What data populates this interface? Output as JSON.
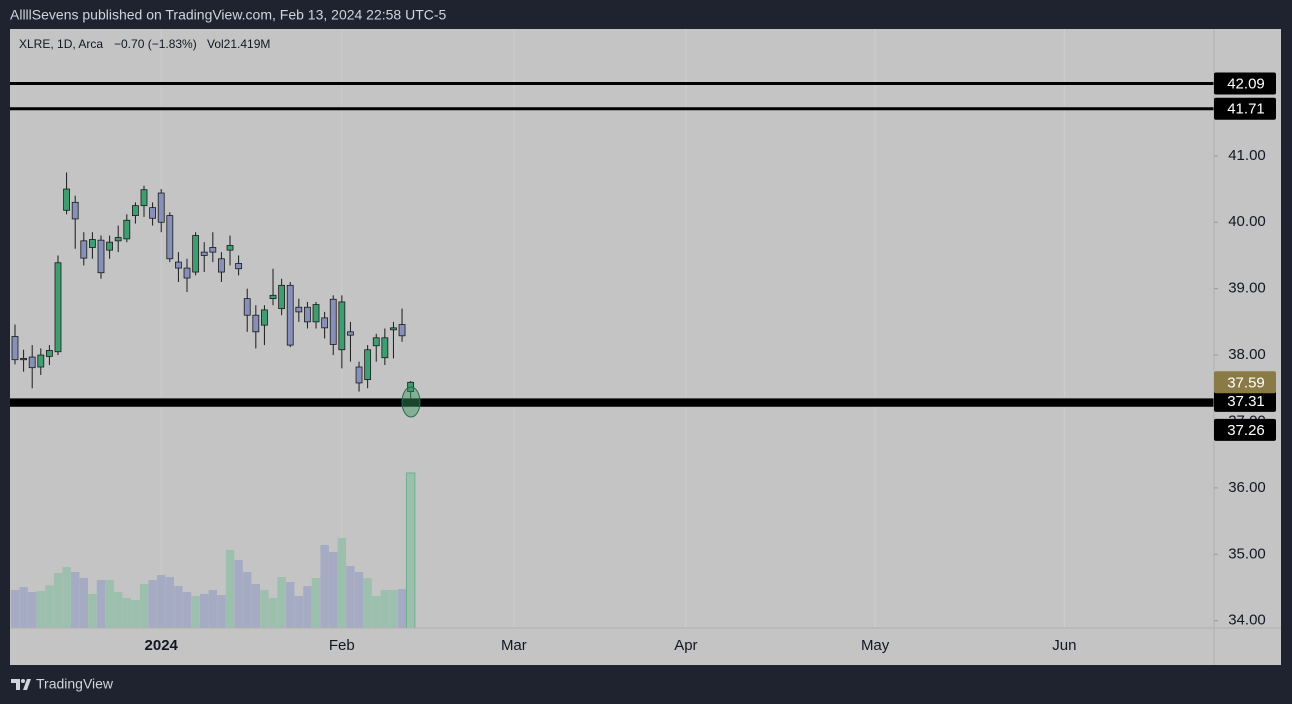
{
  "chart_data": {
    "type": "candlestick",
    "header": "AllllSevens published on TradingView.com, Feb 13, 2024 22:58 UTC-5",
    "symbol": "XLRE, 1D, Arca",
    "change": "−0.70 (−1.83%)",
    "volume_label": "Vol21.419M",
    "brand": "TradingView",
    "up_color": "#3f9d72",
    "down_color": "#8690b8",
    "volume_up_color": "#9dbfae",
    "volume_down_color": "#a6abc4",
    "open": [
      38.28,
      37.95,
      37.97,
      37.82,
      37.98,
      38.05,
      40.18,
      40.3,
      39.72,
      39.62,
      39.73,
      39.58,
      39.72,
      39.75,
      40.1,
      40.25,
      40.22,
      40.44,
      40.1,
      39.4,
      39.31,
      39.25,
      39.55,
      39.62,
      39.45,
      39.58,
      39.38,
      38.85,
      38.6,
      38.45,
      38.85,
      38.7,
      39.05,
      38.72,
      38.72,
      38.5,
      38.56,
      38.84,
      38.08,
      38.35,
      37.82,
      37.63,
      38.14,
      37.96,
      38.38,
      38.46,
      37.45
    ],
    "high": [
      38.46,
      38.08,
      38.15,
      38.1,
      38.15,
      39.5,
      40.75,
      40.4,
      39.85,
      39.85,
      39.8,
      39.8,
      39.95,
      40.12,
      40.3,
      40.55,
      40.3,
      40.5,
      40.15,
      39.55,
      39.45,
      39.85,
      39.7,
      39.85,
      39.55,
      39.8,
      39.5,
      39.0,
      38.75,
      38.75,
      39.3,
      39.15,
      39.1,
      38.85,
      38.8,
      38.8,
      38.65,
      38.9,
      38.9,
      38.5,
      37.9,
      38.15,
      38.32,
      38.4,
      38.5,
      38.7,
      37.61
    ],
    "low": [
      37.86,
      37.75,
      37.5,
      37.7,
      37.85,
      38.0,
      40.12,
      39.6,
      39.35,
      39.45,
      39.15,
      39.45,
      39.55,
      39.7,
      39.98,
      40.08,
      39.95,
      39.85,
      39.4,
      39.1,
      38.95,
      39.2,
      39.25,
      39.4,
      39.1,
      39.35,
      39.2,
      38.35,
      38.1,
      38.15,
      38.75,
      38.6,
      38.12,
      38.5,
      38.4,
      38.4,
      38.25,
      38.0,
      37.8,
      37.9,
      37.45,
      37.5,
      37.9,
      37.85,
      37.95,
      38.2,
      37.35
    ],
    "close": [
      37.93,
      37.93,
      37.81,
      38.0,
      38.07,
      39.39,
      40.5,
      40.05,
      39.46,
      39.74,
      39.24,
      39.7,
      39.77,
      40.03,
      40.25,
      40.49,
      40.06,
      40.0,
      39.45,
      39.31,
      39.16,
      39.8,
      39.5,
      39.55,
      39.25,
      39.65,
      39.3,
      38.6,
      38.35,
      38.68,
      38.9,
      39.05,
      38.15,
      38.65,
      38.5,
      38.76,
      38.41,
      38.16,
      38.8,
      38.3,
      37.58,
      38.08,
      38.26,
      38.26,
      38.41,
      38.29,
      37.59
    ],
    "volume": [
      5.25,
      5.67,
      4.97,
      5.1,
      5.9,
      7.6,
      8.43,
      7.74,
      6.91,
      4.7,
      6.63,
      6.63,
      4.97,
      4.15,
      3.87,
      6.08,
      6.63,
      7.32,
      7.05,
      5.8,
      4.97,
      4.42,
      4.7,
      5.25,
      4.56,
      10.78,
      9.4,
      7.74,
      6.08,
      5.25,
      4.15,
      7.05,
      6.36,
      4.42,
      5.8,
      6.91,
      11.47,
      10.5,
      12.44,
      8.57,
      7.74,
      6.91,
      4.42,
      5.25,
      5.25,
      5.39,
      21.419
    ],
    "ylim": [
      33.89,
      42.91
    ],
    "yticks": [
      {
        "value": 34,
        "label": "34.00"
      },
      {
        "value": 35,
        "label": "35.00"
      },
      {
        "value": 36,
        "label": "36.00"
      },
      {
        "value": 37,
        "label": "37.00"
      },
      {
        "value": 38,
        "label": "38.00"
      },
      {
        "value": 39,
        "label": "39.00"
      },
      {
        "value": 40,
        "label": "40.00"
      },
      {
        "value": 41,
        "label": "41.00"
      }
    ],
    "xlim": [
      -0.58,
      139.4
    ],
    "xticks": [
      {
        "value": 17,
        "label": "2024"
      },
      {
        "value": 38,
        "label": "Feb"
      },
      {
        "value": 58,
        "label": "Mar"
      },
      {
        "value": 78,
        "label": "Apr"
      },
      {
        "value": 100,
        "label": "May"
      },
      {
        "value": 122,
        "label": "Jun"
      }
    ],
    "levels": [
      42.09,
      41.71,
      37.31,
      37.26
    ],
    "last_price": 37.59,
    "grid": true
  }
}
